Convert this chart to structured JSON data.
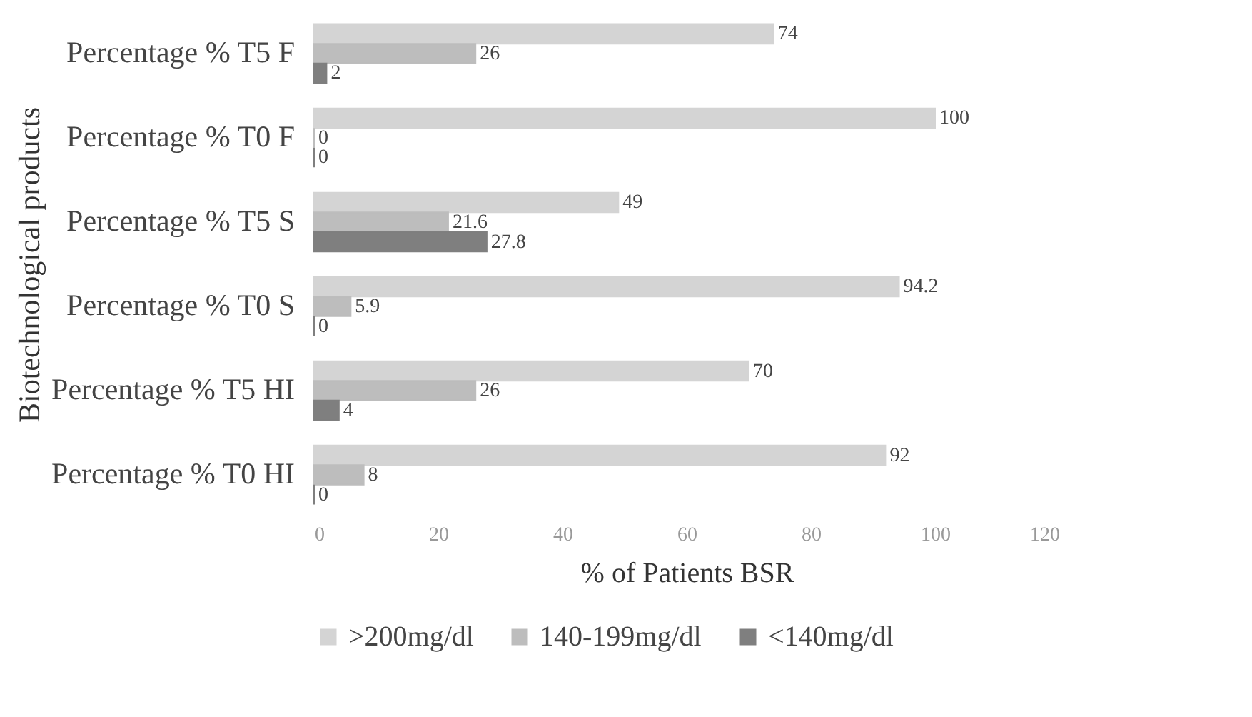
{
  "chart_data": {
    "type": "bar",
    "orientation": "horizontal",
    "xlabel": "% of Patients BSR",
    "ylabel": "Biotechnological products",
    "categories": [
      "Percentage % T5 F",
      "Percentage % T0 F",
      "Percentage % T5 S",
      "Percentage % T0 S",
      "Percentage % T5 HI",
      "Percentage % T0 HI"
    ],
    "series": [
      {
        "name": ">200mg/dl",
        "color": "#d4d4d4",
        "values": [
          74,
          100,
          49,
          94.2,
          70,
          92
        ]
      },
      {
        "name": "140-199mg/dl",
        "color": "#bdbdbd",
        "values": [
          26,
          0,
          21.6,
          5.9,
          26,
          8
        ]
      },
      {
        "name": "<140mg/dl",
        "color": "#7f7f7f",
        "values": [
          2,
          0,
          27.8,
          0,
          4,
          0
        ]
      }
    ],
    "xlim": [
      0,
      120
    ],
    "xticks": [
      0,
      20,
      40,
      60,
      80,
      100,
      120
    ],
    "data_labels": true,
    "legend": "bottom",
    "grid": false
  }
}
